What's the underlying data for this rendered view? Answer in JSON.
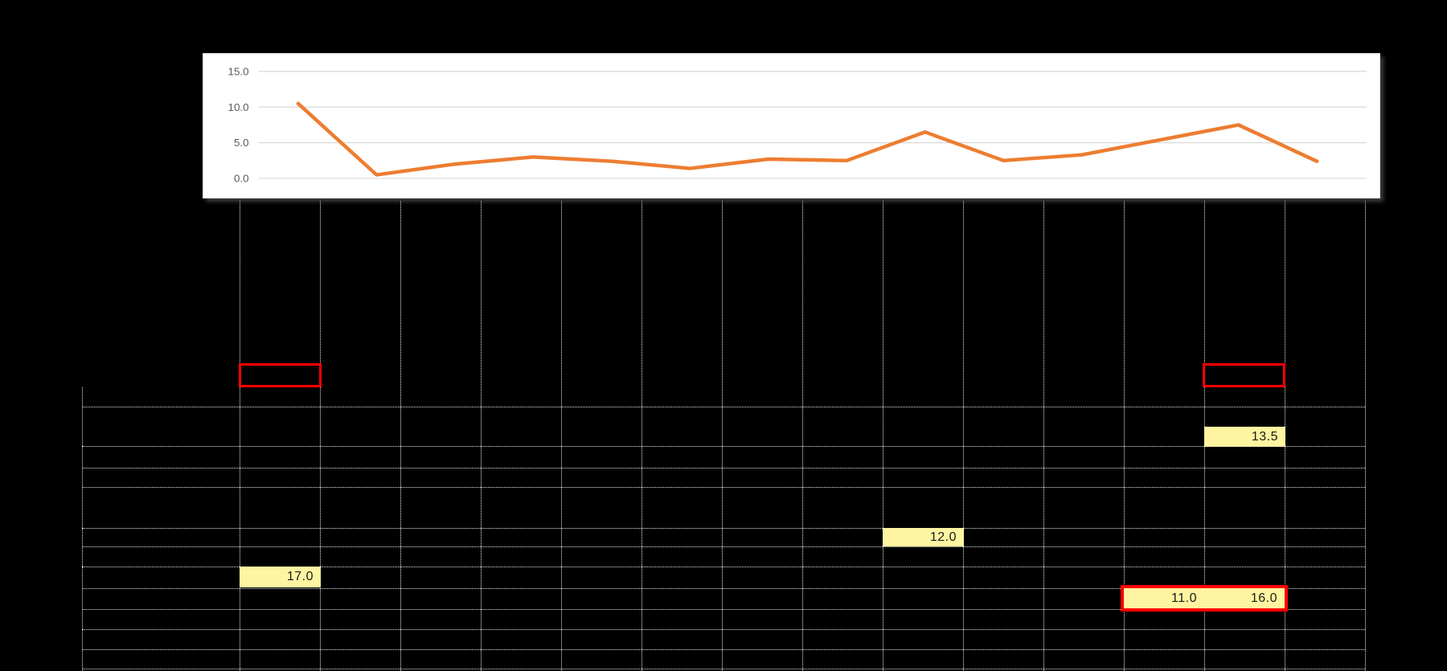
{
  "chart": {
    "panel_background": "#ffffff",
    "border_color": "#d9d9d9",
    "gridline_color": "#d9d9d9",
    "axis_label_color": "#595959",
    "line_color": "#ed7d31"
  },
  "chart_data": {
    "type": "line",
    "x": [
      1,
      2,
      3,
      4,
      5,
      6,
      7,
      8,
      9,
      10,
      11,
      12,
      13,
      14
    ],
    "values": [
      10.5,
      0.5,
      2.0,
      3.0,
      2.4,
      1.4,
      2.7,
      2.5,
      6.5,
      2.5,
      3.3,
      5.4,
      7.5,
      2.4
    ],
    "title": "",
    "xlabel": "",
    "ylabel": "",
    "yticks": [
      0.0,
      5.0,
      10.0,
      15.0
    ],
    "ytick_labels": [
      "0.0",
      "5.0",
      "10.0",
      "15.0"
    ],
    "ylim": [
      -2.5,
      17.5
    ],
    "grid": true,
    "legend": false,
    "series_color": "#ed7d31"
  },
  "table": {
    "highlight_fill": "#fff5a1",
    "outline_color": "#ff0000",
    "text_color": "#1a1a1a",
    "cells": [
      {
        "id": "cell-17",
        "value": "17.0"
      },
      {
        "id": "cell-135",
        "value": "13.5"
      },
      {
        "id": "cell-12",
        "value": "12.0"
      },
      {
        "id": "cell-11",
        "value": "11.0"
      },
      {
        "id": "cell-16",
        "value": "16.0"
      }
    ],
    "empty_outlined_cells": 2
  }
}
